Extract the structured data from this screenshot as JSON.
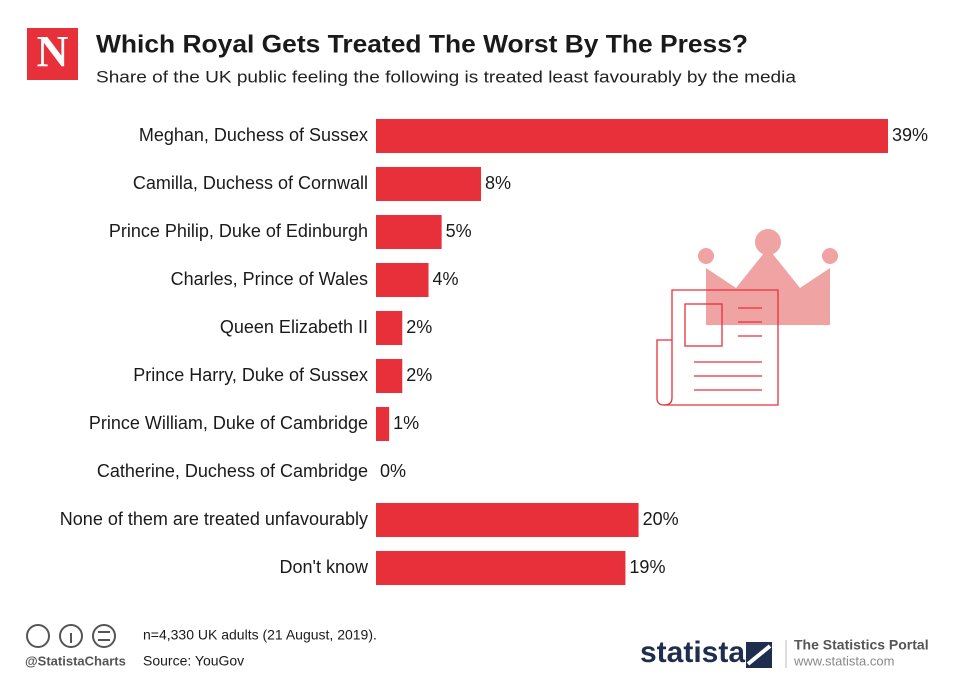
{
  "chart_data": {
    "type": "bar",
    "orientation": "horizontal",
    "title": "Which Royal Gets Treated The Worst By The Press?",
    "subtitle": "Share of the UK public feeling the following is treated least favourably by the media",
    "categories": [
      "Meghan, Duchess of Sussex",
      "Camilla, Duchess of Cornwall",
      "Prince Philip, Duke of Edinburgh",
      "Charles, Prince of Wales",
      "Queen Elizabeth II",
      "Prince Harry, Duke of Sussex",
      "Prince William, Duke of Cambridge",
      "Catherine, Duchess of Cambridge",
      "None of them are treated unfavourably",
      "Don't know"
    ],
    "values": [
      39,
      8,
      5,
      4,
      2,
      2,
      1,
      0,
      20,
      19
    ],
    "value_labels": [
      "39%",
      "8%",
      "5%",
      "4%",
      "2%",
      "2%",
      "1%",
      "0%",
      "20%",
      "19%"
    ],
    "color": "#e8303a",
    "note": "n=4,330 UK adults (21 August, 2019).",
    "source": "Source: YouGov"
  },
  "branding": {
    "logo": "N",
    "handle": "@StatistaCharts",
    "statista": "statista",
    "portal": "The Statistics Portal",
    "url": "www.statista.com"
  }
}
